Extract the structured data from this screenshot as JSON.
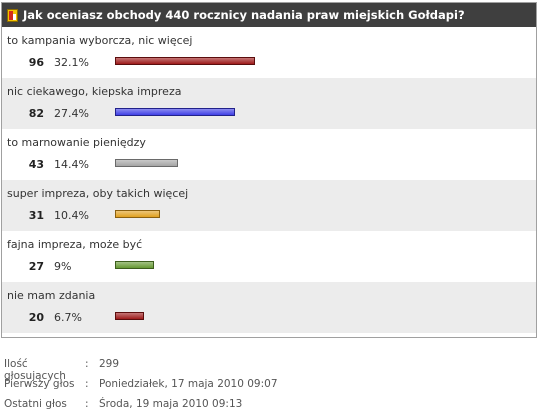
{
  "poll": {
    "title": "Jak oceniasz obchody 440 rocznicy nadania praw miejskich Gołdapi?",
    "options": [
      {
        "label": "to kampania wyborcza, nic więcej",
        "count": "96",
        "percent": "32.1%",
        "value": 32.1,
        "color": "#9e1b1b"
      },
      {
        "label": "nic ciekawego, kiepska impreza",
        "count": "82",
        "percent": "27.4%",
        "value": 27.4,
        "color": "#4040e6"
      },
      {
        "label": "to marnowanie pieniędzy",
        "count": "43",
        "percent": "14.4%",
        "value": 14.4,
        "color": "#a6a6a6"
      },
      {
        "label": "super impreza, oby takich więcej",
        "count": "31",
        "percent": "10.4%",
        "value": 10.4,
        "color": "#e0a020"
      },
      {
        "label": "fajna impreza, może być",
        "count": "27",
        "percent": "9%",
        "value": 9,
        "color": "#669933"
      },
      {
        "label": "nie mam zdania",
        "count": "20",
        "percent": "6.7%",
        "value": 6.7,
        "color": "#9e1b1b"
      }
    ]
  },
  "meta": {
    "separator": ":",
    "voters_label": "Ilość głosujących",
    "voters_value": "299",
    "first_label": "Pierwszy głos",
    "first_value": "Poniedziałek, 17 maja 2010 09:07",
    "last_label": "Ostatni głos",
    "last_value": "Środa, 19 maja 2010 09:13"
  }
}
